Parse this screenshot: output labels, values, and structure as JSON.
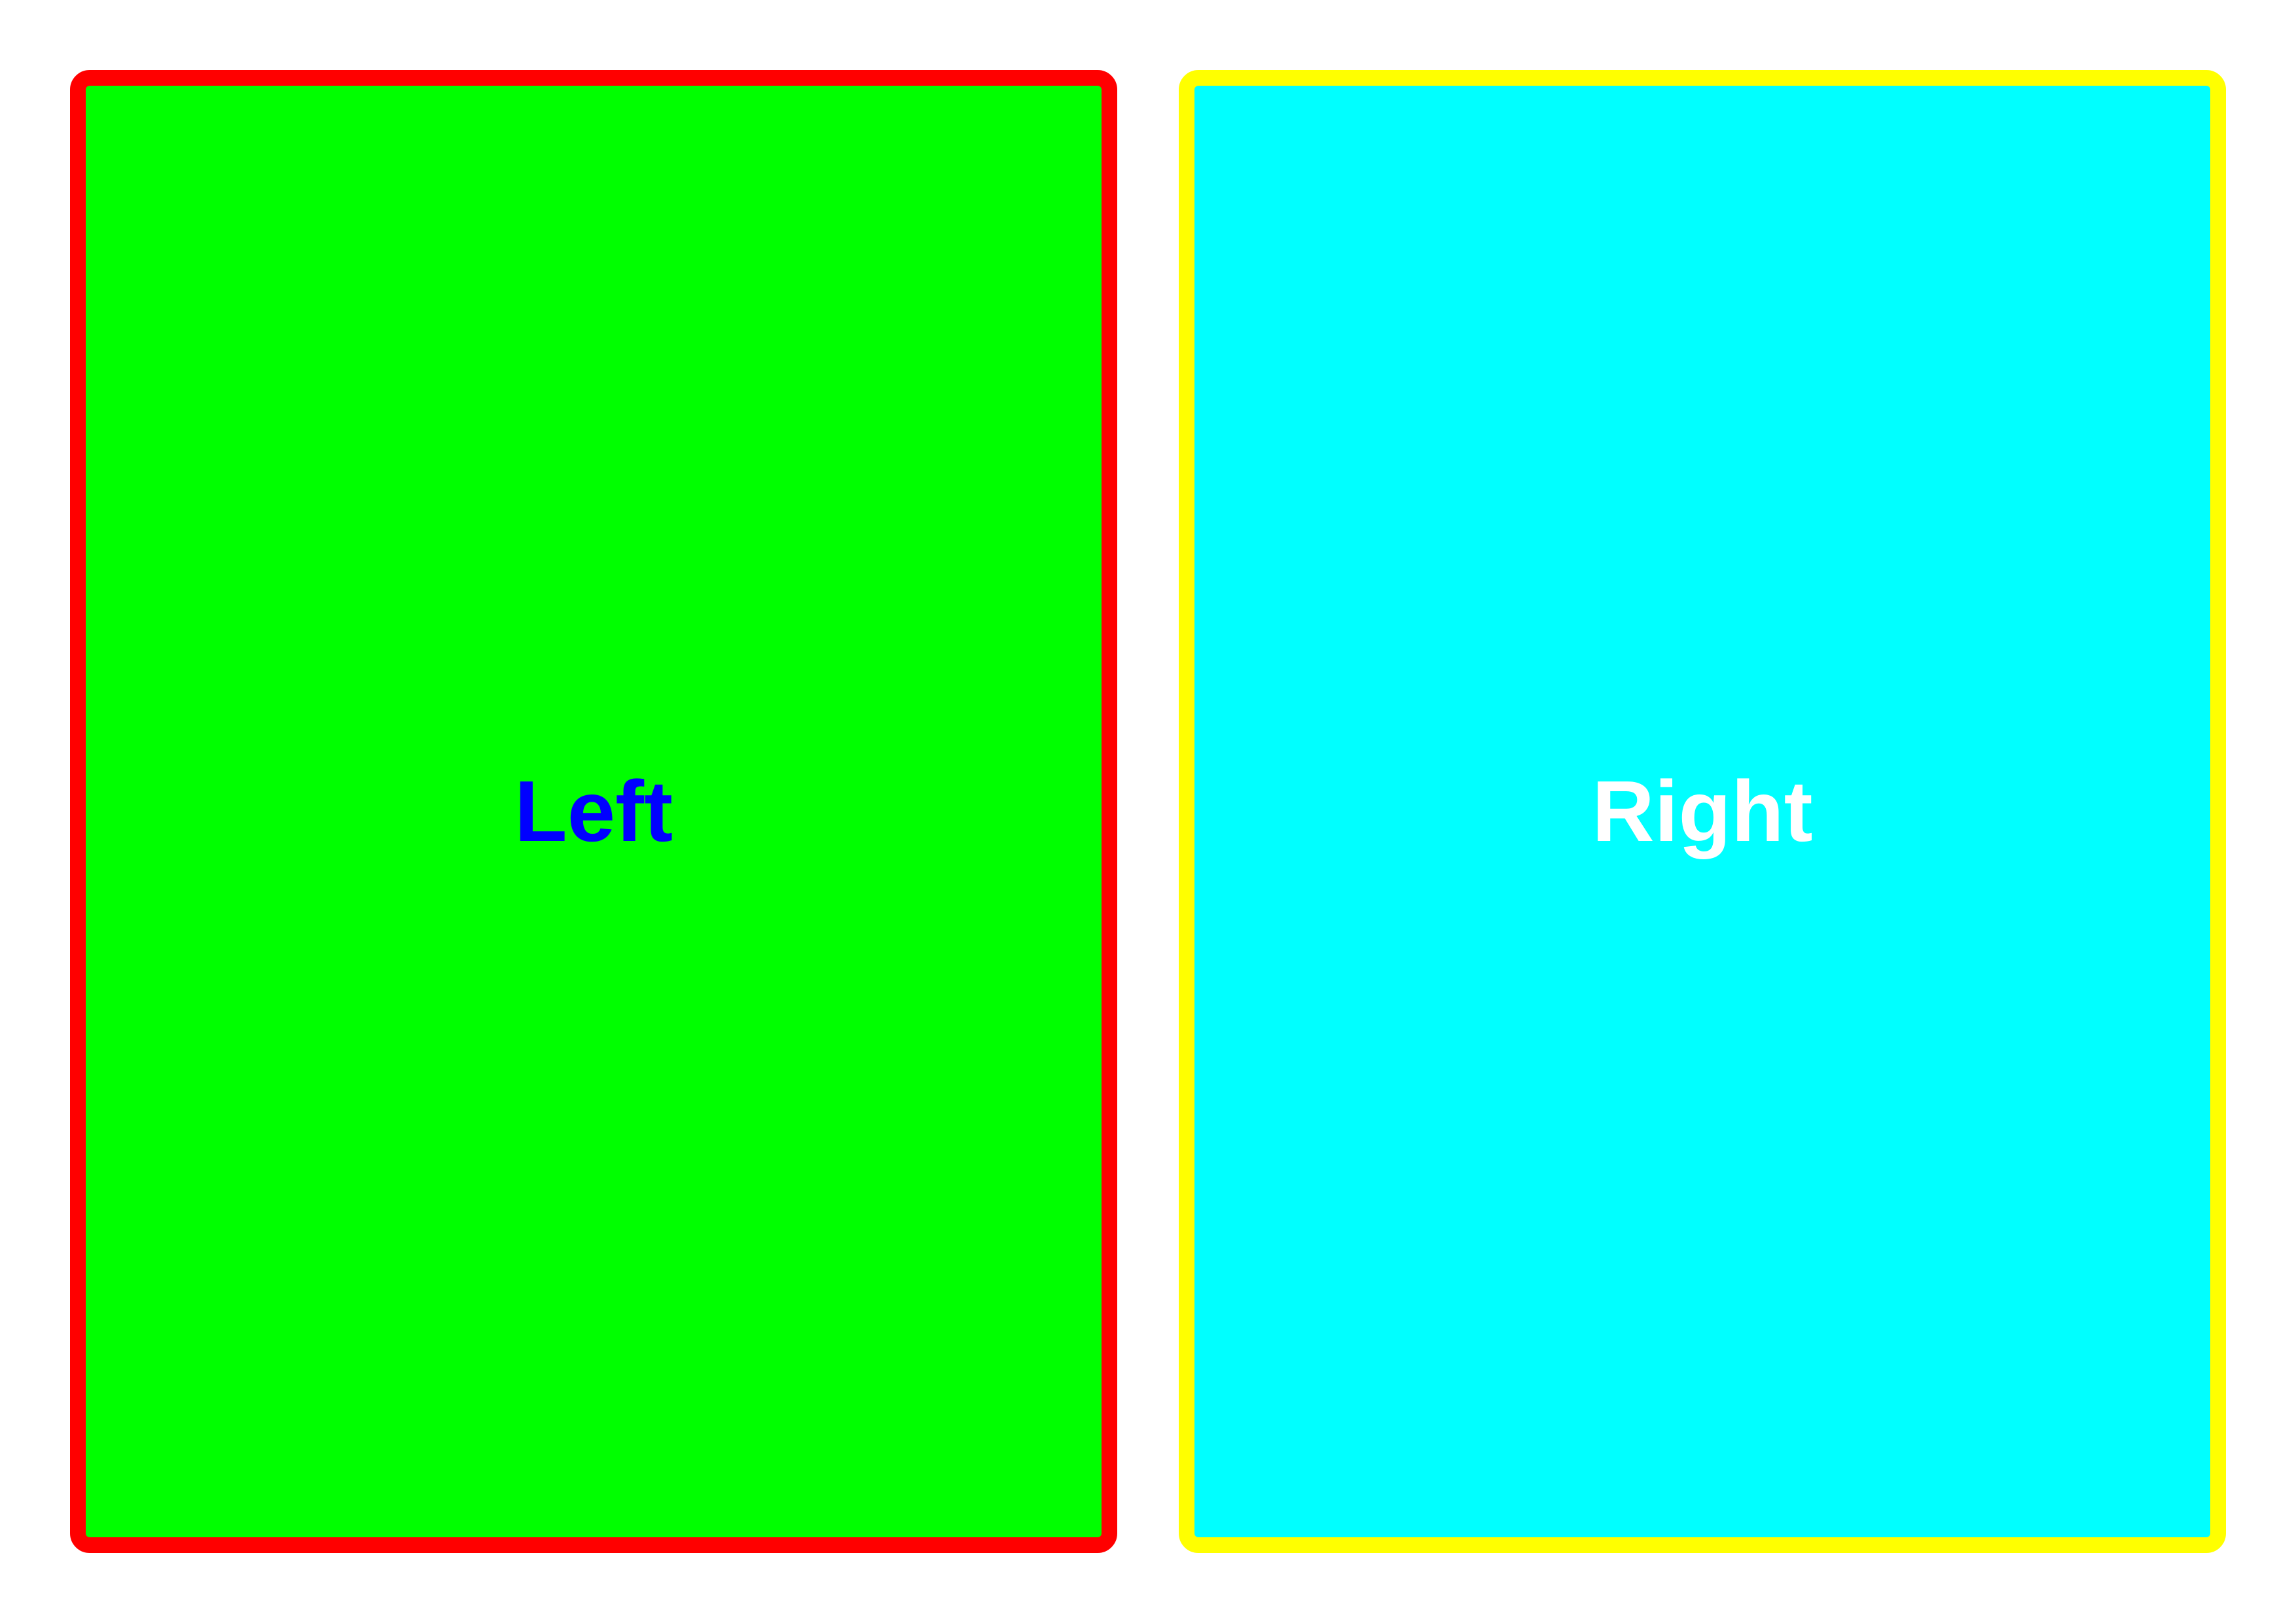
{
  "panels": {
    "left": {
      "label": "Left",
      "fill_color": "#00ff00",
      "border_color": "#ff0000",
      "text_color": "#0000ff"
    },
    "right": {
      "label": "Right",
      "fill_color": "#00ffff",
      "border_color": "#ffff00",
      "text_color": "#ffffff"
    }
  }
}
